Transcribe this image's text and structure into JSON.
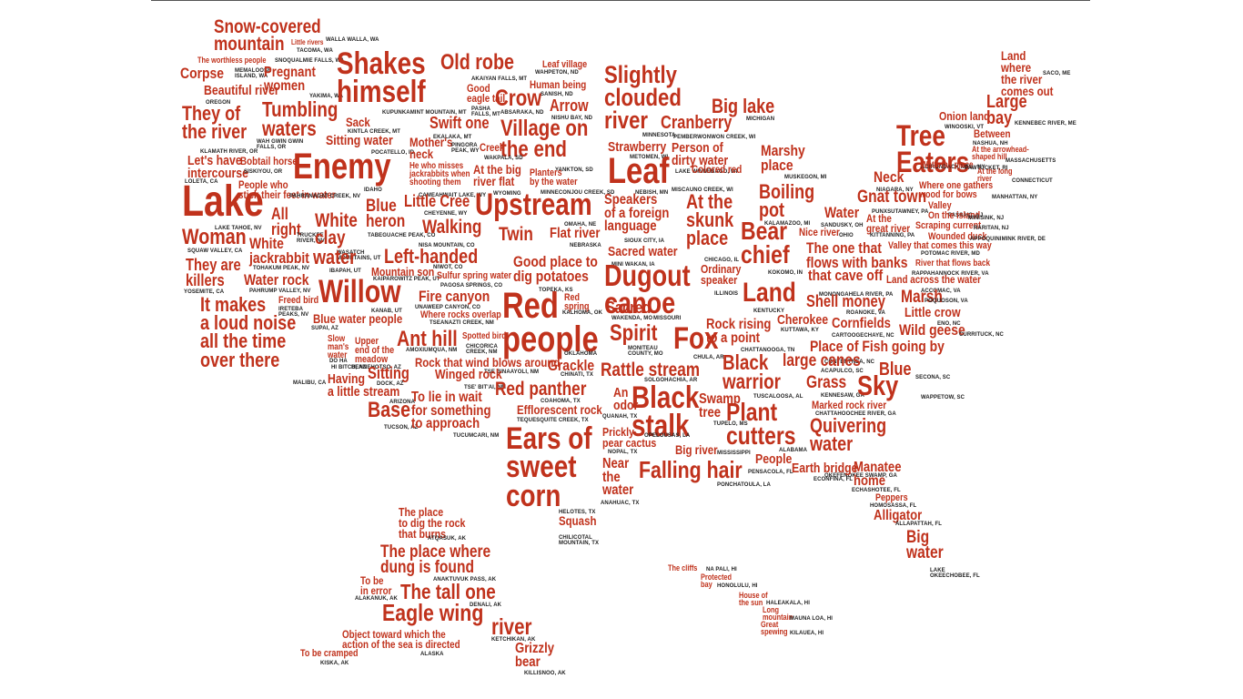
{
  "colors": {
    "word": "#c0321c",
    "place": "#222222",
    "background": "#ffffff"
  },
  "words": [
    {
      "id": "snow-covered-mountain",
      "text": "Snow-covered\nmountain",
      "place": "WALLA WALLA, WA"
    },
    {
      "id": "little-rivers",
      "text": "Little rivers",
      "place": "TACOMA, WA"
    },
    {
      "id": "worthless-people",
      "text": "The worthless people",
      "place": "SNOQUALMIE FALLS, WA"
    },
    {
      "id": "corpse",
      "text": "Corpse",
      "place": "MEMALOOSE\nISLAND, WA"
    },
    {
      "id": "pregnant-women",
      "text": "Pregnant\nwomen",
      "place": "YAKIMA, WA"
    },
    {
      "id": "beautiful-river",
      "text": "Beautiful river",
      "place": "OREGON"
    },
    {
      "id": "shakes-himself",
      "text": "Shakes\nhimself",
      "place": "KUPUNKAMINT MOUNTAIN, MT"
    },
    {
      "id": "old-robe",
      "text": "Old robe",
      "place": "AKAIYAN FALLS, MT"
    },
    {
      "id": "good-eagle-tail",
      "text": "Good\neagle tail",
      "place": "PASHA\nFALLS, MT"
    },
    {
      "id": "crow",
      "text": "Crow",
      "place": "ABSARAKA, ND"
    },
    {
      "id": "leaf-village",
      "text": "Leaf village",
      "place": "WAHPETON, ND"
    },
    {
      "id": "human-being",
      "text": "Human being",
      "place": "SANISH, ND"
    },
    {
      "id": "arrow",
      "text": "Arrow",
      "place": "NISHU BAY, ND"
    },
    {
      "id": "slightly-clouded-river",
      "text": "Slightly\nclouded\nriver",
      "place": "MINNESOTA"
    },
    {
      "id": "big-lake",
      "text": "Big lake",
      "place": "MICHIGAN"
    },
    {
      "id": "cranberry",
      "text": "Cranberry",
      "place": "PEMBERWONWON CREEK, WI"
    },
    {
      "id": "they-of-the-river",
      "text": "They of\nthe river",
      "place": "KLAMATH RIVER, OR"
    },
    {
      "id": "tumbling-waters",
      "text": "Tumbling\nwaters",
      "place": "WAH GWIN GWIN\nFALLS, OR"
    },
    {
      "id": "sack",
      "text": "Sack",
      "place": "KINTLA CREEK, MT"
    },
    {
      "id": "swift-one",
      "text": "Swift one",
      "place": "EKALAKA, MT"
    },
    {
      "id": "village-on-the-end",
      "text": "Village on\nthe end",
      "place": "YANKTON, SD"
    },
    {
      "id": "sitting-water",
      "text": "Sitting water",
      "place": "POCATELLO, ID"
    },
    {
      "id": "mothers-neck",
      "text": "Mother's\nneck",
      "place": "PINGORA\nPEAK, WY"
    },
    {
      "id": "creek",
      "text": "Creek",
      "place": "WAKPALA, SD"
    },
    {
      "id": "strawberry",
      "text": "Strawberry",
      "place": "METOMEN, WI"
    },
    {
      "id": "person-of-dirty-water",
      "text": "Person of\ndirty water",
      "place": "LAKE WINNEBAGO, WI"
    },
    {
      "id": "colored-red",
      "text": "Colored red",
      "place": "MISCAUNO CREEK, WI"
    },
    {
      "id": "marshy-place",
      "text": "Marshy\nplace",
      "place": "MUSKEGON, MI"
    },
    {
      "id": "lets-have-intercourse",
      "text": "Let's have\nintercourse",
      "place": "LOLETA, CA"
    },
    {
      "id": "bobtail-horse",
      "text": "Bobtail horse",
      "place": "SISKIYOU, OR"
    },
    {
      "id": "enemy",
      "text": "Enemy",
      "place": "IDAHO"
    },
    {
      "id": "jackrabbits",
      "text": "He who misses\njackrabbits when\nshooting them",
      "place": "CAMEAHWAIT LAKE, WY"
    },
    {
      "id": "at-the-big-river-flat",
      "text": "At the big\nriver flat",
      "place": "WYOMING"
    },
    {
      "id": "planters-by-the-water",
      "text": "Planters\nby the water",
      "place": "MINNECONJOU CREEK, SD"
    },
    {
      "id": "leaf",
      "text": "Leaf",
      "place": "NEBISH, MN"
    },
    {
      "id": "land-where-river-comes-out",
      "text": "Land\nwhere\nthe river\ncomes out",
      "place": "SACO, ME"
    },
    {
      "id": "large-bay",
      "text": "Large\nbay",
      "place": "KENNEBEC RIVER, ME"
    },
    {
      "id": "onion-land",
      "text": "Onion land",
      "place": "WINOOSKI, VT"
    },
    {
      "id": "between",
      "text": "Between",
      "place": "NASHUA, NH"
    },
    {
      "id": "tree-eaters",
      "text": "Tree\nEaters",
      "place": "ADIRONDACK MTS., NY"
    },
    {
      "id": "arrowhead-river",
      "text": "At the arrowhead-\nshaped hill",
      "place": "MASSACHUSETTS"
    },
    {
      "id": "long-river",
      "text": "At the long\nriver",
      "place": "CONNECTICUT"
    },
    {
      "id": "waterfall-place",
      "text": "Waterfall place",
      "place": "PAWTUCKET, RI"
    },
    {
      "id": "people-who-stick-feet",
      "text": "People who\nstick their feet in water",
      "place": "PAHRANAGAT CREEK, NV"
    },
    {
      "id": "lake",
      "text": "Lake",
      "place": "LAKE TAHOE, NV"
    },
    {
      "id": "all-right",
      "text": "All\nright",
      "place": "TRUCKEE\nRIVER, NV"
    },
    {
      "id": "little-cree",
      "text": "Little Cree",
      "place": "CHEYENNE, WY"
    },
    {
      "id": "upstream",
      "text": "Upstream",
      "place": "OMAHA, NE"
    },
    {
      "id": "speakers-foreign-language",
      "text": "Speakers\nof a foreign\nlanguage",
      "place": "SIOUX CITY, IA"
    },
    {
      "id": "at-the-skunk-place",
      "text": "At the\nskunk\nplace",
      "place": "CHICAGO, IL"
    },
    {
      "id": "boiling-pot",
      "text": "Boiling\npot",
      "place": "KALAMAZOO, MI"
    },
    {
      "id": "neck",
      "text": "Neck",
      "place": "NIAGARA, NY"
    },
    {
      "id": "gnat-town",
      "text": "Gnat town",
      "place": "PUNXSUTAWNEY, PA"
    },
    {
      "id": "wood-for-bows",
      "text": "Where one gathers\nwood for bows",
      "place": "MANHATTAN, NY"
    },
    {
      "id": "valley",
      "text": "Valley",
      "place": "PASSAIC, NJ"
    },
    {
      "id": "woman",
      "text": "Woman",
      "place": "SQUAW VALLEY, CA"
    },
    {
      "id": "white-clay",
      "text": "White\nclay",
      "place": "WASATCH\nMOUNTAINS, UT"
    },
    {
      "id": "blue-heron",
      "text": "Blue\nheron",
      "place": "TABEGUACHE PEAK, CO"
    },
    {
      "id": "walking",
      "text": "Walking",
      "place": "NISA MOUNTAIN, CO"
    },
    {
      "id": "twin",
      "text": "Twin",
      "place": ""
    },
    {
      "id": "flat-river",
      "text": "Flat river",
      "place": "NEBRASKA"
    },
    {
      "id": "water",
      "text": "Water",
      "place": "SANDUSKY, OH"
    },
    {
      "id": "at-the-great-river",
      "text": "At the\ngreat river",
      "place": "KITTANNING, PA"
    },
    {
      "id": "on-the-island",
      "text": "On the island",
      "place": "MINISINK, NJ"
    },
    {
      "id": "scraping-current",
      "text": "Scraping current",
      "place": "RARITAN, NJ"
    },
    {
      "id": "wounded-duck",
      "text": "Wounded duck",
      "place": "APPOQUINIMINK RIVER, DE"
    },
    {
      "id": "nice-river",
      "text": "Nice river",
      "place": "OHIO"
    },
    {
      "id": "they-are-killers",
      "text": "They are\nkillers",
      "place": "YOSEMITE, CA"
    },
    {
      "id": "white-jackrabbit",
      "text": "White\njackrabbit",
      "place": "TOHAKUM PEAK, NV"
    },
    {
      "id": "water-rock",
      "text": "Water rock",
      "place": "PAHRUMP VALLEY, NV"
    },
    {
      "id": "water-ut",
      "text": "water",
      "place": "IBAPAH, UT"
    },
    {
      "id": "left-handed",
      "text": "Left-handed",
      "place": "NIWOT, CO"
    },
    {
      "id": "sacred-water",
      "text": "Sacred water",
      "place": "MINI WAKAN, IA"
    },
    {
      "id": "bear-chief",
      "text": "Bear\nchief",
      "place": "KOKOMO, IN"
    },
    {
      "id": "the-one-that-flows",
      "text": "The one that\nflows with banks",
      "place": ""
    },
    {
      "id": "that-cave-off",
      "text": "that cave off",
      "place": "MONONGAHELA RIVER, PA"
    },
    {
      "id": "valley-comes-this-way",
      "text": "Valley that comes this way",
      "place": "POTOMAC RIVER, MD"
    },
    {
      "id": "river-flows-back",
      "text": "River that flows back",
      "place": "RAPPAHANNOCK RIVER, VA"
    },
    {
      "id": "mountain-son",
      "text": "Mountain son",
      "place": "KAIPAROWITZ PEAK, UT"
    },
    {
      "id": "sulfur-spring-water",
      "text": "Sulfur spring water",
      "place": "PAGOSA SPRINGS, CO"
    },
    {
      "id": "good-place-dig-potatoes",
      "text": "Good place to\ndig potatoes",
      "place": "TOPEKA, KS"
    },
    {
      "id": "dugout-canoe",
      "text": "Dugout\ncanoe",
      "place": "MISSOURI"
    },
    {
      "id": "ordinary-speaker",
      "text": "Ordinary\nspeaker",
      "place": "ILLINOIS"
    },
    {
      "id": "land",
      "text": "Land",
      "place": "KENTUCKY"
    },
    {
      "id": "land-across-the-water",
      "text": "Land across the water",
      "place": "ACCOMAC, VA"
    },
    {
      "id": "it-makes-a-loud-noise",
      "text": "It makes\na loud noise\nall the time\nover there",
      "place": "MALIBU, CA"
    },
    {
      "id": "freed-bird",
      "text": "Freed bird",
      "place": "IRETEBA\nPEAKS, NV"
    },
    {
      "id": "willow",
      "text": "Willow",
      "place": "KANAB, UT"
    },
    {
      "id": "fire-canyon",
      "text": "Fire canyon",
      "place": "UNAWEEP CANYON, CO"
    },
    {
      "id": "red-people",
      "text": "Red\npeople",
      "place": "OKLAHOMA"
    },
    {
      "id": "red-spring",
      "text": "Red\nspring",
      "place": "KALHOMA, OK"
    },
    {
      "id": "sacred",
      "text": "Sacred",
      "place": "WAKENDA, MO"
    },
    {
      "id": "shell-money",
      "text": "Shell money",
      "place": "ROANOKE, VA"
    },
    {
      "id": "marsh",
      "text": "Marsh",
      "place": "POQUOSON, VA"
    },
    {
      "id": "blue-water-people",
      "text": "Blue water people",
      "place": "SUPAI, AZ"
    },
    {
      "id": "where-rocks-overlap",
      "text": "Where rocks overlap",
      "place": "TSEANAZTI CREEK, NM"
    },
    {
      "id": "cherokee",
      "text": "Cherokee",
      "place": "KUTTAWA, KY"
    },
    {
      "id": "cornfields",
      "text": "Cornfields",
      "place": "CARTOOGECHAYE, NC"
    },
    {
      "id": "little-crow",
      "text": "Little crow",
      "place": "ENO, NC"
    },
    {
      "id": "wild-geese",
      "text": "Wild geese",
      "place": "CURRITUCK, NC"
    },
    {
      "id": "slow-mans-water",
      "text": "Slow\nman's\nwater",
      "place": "DO HA"
    },
    {
      "id": "upper-end-of-meadow",
      "text": "Upper\nend of the\nmeadow",
      "place": "DENNEHOTSO, AZ"
    },
    {
      "id": "ant-hill",
      "text": "Ant hill",
      "place": "AMOXIUMQUA, NM"
    },
    {
      "id": "spotted-bird",
      "text": "Spotted bird",
      "place": "CHICORICA\nCREEK, NM"
    },
    {
      "id": "spirit",
      "text": "Spirit",
      "place": "MONITEAU\nCOUNTY, MO"
    },
    {
      "id": "fox",
      "text": "Fox",
      "place": "CHULA, AR"
    },
    {
      "id": "rock-rising-to-a-point",
      "text": "Rock rising\nto a point",
      "place": "CHATTANOOGA, TN"
    },
    {
      "id": "place-of-fish",
      "text": "Place of Fish going by",
      "place": "CONTENTNEA, NC"
    },
    {
      "id": "large-canes",
      "text": "large canes",
      "place": "ACAPULCO, SC"
    },
    {
      "id": "hi-bitch",
      "text": "",
      "place": "HI BITCH, AZ"
    },
    {
      "id": "rock-wind-blows-around",
      "text": "Rock that wind blows around",
      "place": "TSE BINAAYOLI, NM"
    },
    {
      "id": "grackle",
      "text": "Grackle",
      "place": "CHINATI, TX"
    },
    {
      "id": "rattle-stream",
      "text": "Rattle stream",
      "place": "SOLGOHACHIA, AR"
    },
    {
      "id": "black-warrior",
      "text": "Black\nwarrior",
      "place": "TUSCALOOSA, AL"
    },
    {
      "id": "grass",
      "text": "Grass",
      "place": "KENNESAW, GA"
    },
    {
      "id": "blue",
      "text": "Blue",
      "place": "SECONA, SC"
    },
    {
      "id": "sky",
      "text": "Sky",
      "place": "WAPPETOW, SC"
    },
    {
      "id": "having-a-little-stream",
      "text": "Having\na little stream",
      "place": "ARIZONA"
    },
    {
      "id": "sitting",
      "text": "Sitting",
      "place": "DOCK, AZ"
    },
    {
      "id": "winged-rock",
      "text": "Winged rock",
      "place": "TSE' BIT'AI, NM"
    },
    {
      "id": "red-panther",
      "text": "Red panther",
      "place": "COAHOMA, TX"
    },
    {
      "id": "an-odor",
      "text": "An\nodor",
      "place": "QUANAH, TX"
    },
    {
      "id": "black-stalk",
      "text": "Black\nstalk",
      "place": "OPELOUSAS, LA"
    },
    {
      "id": "swamp-tree",
      "text": "Swamp\ntree",
      "place": "TUPELO, MS"
    },
    {
      "id": "plant-cutters",
      "text": "Plant\ncutters",
      "place": "ALABAMA"
    },
    {
      "id": "marked-rock-river",
      "text": "Marked rock river",
      "place": "CHATTAHOOCHEE RIVER, GA"
    },
    {
      "id": "quivering-water",
      "text": "Quivering\nwater",
      "place": "OKEFENOKEE SWAMP, GA"
    },
    {
      "id": "base",
      "text": "Base",
      "place": "TUCSON, AZ"
    },
    {
      "id": "to-lie-in-wait",
      "text": "To lie in wait\nfor something\nto approach",
      "place": "TUCUMCARI, NM"
    },
    {
      "id": "efflorescent-rock",
      "text": "Efflorescent rock",
      "place": "TEQUESQUITE CREEK, TX"
    },
    {
      "id": "ears-of-sweet-corn",
      "text": "Ears of\nsweet\ncorn",
      "place": "HELOTES, TX"
    },
    {
      "id": "prickly-pear-cactus",
      "text": "Prickly\npear cactus",
      "place": "NOPAL, TX"
    },
    {
      "id": "big-river",
      "text": "Big river",
      "place": "MISSISSIPPI"
    },
    {
      "id": "people",
      "text": "People",
      "place": "PENSACOLA, FL"
    },
    {
      "id": "earth-bridge",
      "text": "Earth bridge",
      "place": "ECONFINA, FL"
    },
    {
      "id": "manatee-home",
      "text": "Manatee\nhome",
      "place": "ECHASHOTEE, FL"
    },
    {
      "id": "near-the-water",
      "text": "Near\nthe\nwater",
      "place": "ANAHUAC, TX"
    },
    {
      "id": "falling-hair",
      "text": "Falling hair",
      "place": "PONCHATOULA, LA"
    },
    {
      "id": "peppers",
      "text": "Peppers",
      "place": "HOMOSASSA, FL"
    },
    {
      "id": "alligator",
      "text": "Alligator",
      "place": "ALLAPATTAH, FL"
    },
    {
      "id": "big-water",
      "text": "Big\nwater",
      "place": "LAKE\nOKEECHOBEE, FL"
    },
    {
      "id": "squash",
      "text": "Squash",
      "place": "CHILICOTAL\nMOUNTAIN, TX"
    },
    {
      "id": "place-to-dig-rock",
      "text": "The place\nto dig the rock\nthat burns",
      "place": "ATQASUK, AK"
    },
    {
      "id": "place-where-dung",
      "text": "The place where\ndung is found",
      "place": "ANAKTUVUK PASS, AK"
    },
    {
      "id": "to-be-in-error",
      "text": "To be\nin error",
      "place": "ALAKANUK, AK"
    },
    {
      "id": "the-tall-one",
      "text": "The tall one",
      "place": "DENALI, AK"
    },
    {
      "id": "eagle-wing-river",
      "text": "Eagle wing",
      "place": ""
    },
    {
      "id": "river-ak",
      "text": "river",
      "place": "KETCHIKAN, AK"
    },
    {
      "id": "object-toward-sea",
      "text": "Object toward which the\naction of the sea is directed",
      "place": "ALASKA"
    },
    {
      "id": "to-be-cramped",
      "text": "To be cramped",
      "place": "KISKA, AK"
    },
    {
      "id": "grizzly-bear",
      "text": "Grizzly\nbear",
      "place": "KILLISNOO, AK"
    },
    {
      "id": "the-cliffs",
      "text": "The cliffs",
      "place": "NA PALI, HI"
    },
    {
      "id": "protected-bay",
      "text": "Protected\nbay",
      "place": "HONOLULU, HI"
    },
    {
      "id": "house-of-the-sun",
      "text": "House of\nthe sun",
      "place": "HALEAKALA, HI"
    },
    {
      "id": "long-mountain",
      "text": "Long\nmountain",
      "place": "MAUNA LOA, HI"
    },
    {
      "id": "great-spewing",
      "text": "Great\nspewing",
      "place": "KILAUEA, HI"
    }
  ]
}
